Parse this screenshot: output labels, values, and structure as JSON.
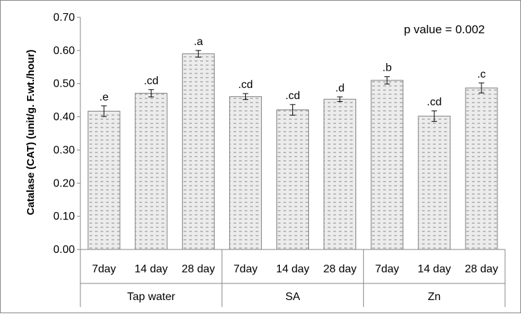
{
  "chart_data": {
    "type": "bar",
    "ylabel": "Catalase (CAT) (unit/g. F.wt./hour)",
    "annotation": "p value = 0.002",
    "ylim": [
      0,
      0.7
    ],
    "yticks": [
      "0.00",
      "0.10",
      "0.20",
      "0.30",
      "0.40",
      "0.50",
      "0.60",
      "0.70"
    ],
    "grid": false,
    "groups": [
      {
        "name": "Tap water",
        "categories": [
          "7day",
          "14 day",
          "28 day"
        ]
      },
      {
        "name": "SA",
        "categories": [
          "7day",
          "14 day",
          "28 day"
        ]
      },
      {
        "name": "Zn",
        "categories": [
          "7day",
          "14 day",
          "28 day"
        ]
      }
    ],
    "categories": [
      "7day",
      "14 day",
      "28 day",
      "7day",
      "14 day",
      "28 day",
      "7day",
      "14 day",
      "28 day"
    ],
    "values": [
      0.417,
      0.471,
      0.59,
      0.461,
      0.421,
      0.453,
      0.51,
      0.402,
      0.487
    ],
    "errors": [
      0.016,
      0.011,
      0.01,
      0.009,
      0.016,
      0.007,
      0.011,
      0.016,
      0.015
    ],
    "significance": [
      ".e",
      ".cd",
      ".a",
      ".cd",
      ".cd",
      ".d",
      ".b",
      ".cd",
      ".c"
    ],
    "bar_fill": "#e9e9e9",
    "bar_stroke": "#7f7f7f",
    "bar_pattern": "dashed-horizontal",
    "axis_color": "#868686"
  }
}
